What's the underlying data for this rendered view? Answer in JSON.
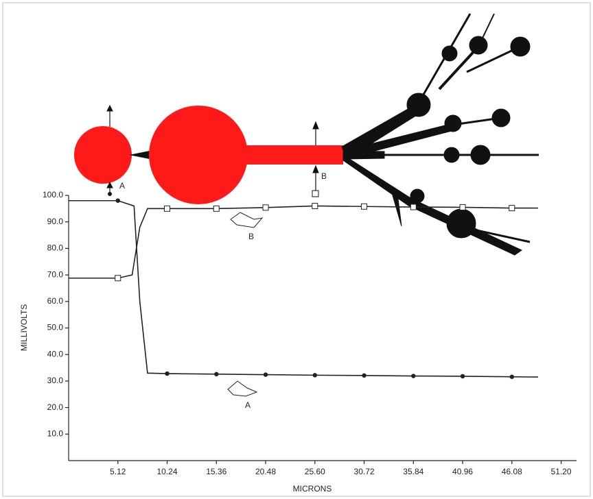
{
  "chart_data": {
    "type": "line",
    "x_label": "MICRONS",
    "y_label": "MILLIVOLTS",
    "xlim": [
      0,
      52.8
    ],
    "ylim": [
      0,
      100
    ],
    "xticks": [
      5.12,
      10.24,
      15.36,
      20.48,
      {
        "value": 25.6,
        "label": "25.60"
      },
      30.72,
      35.84,
      40.96,
      46.08,
      {
        "value": 51.2,
        "label": "51.20"
      }
    ],
    "yticks": [
      {
        "value": 10,
        "label": "10.0"
      },
      {
        "value": 20,
        "label": "20.0"
      },
      {
        "value": 30,
        "label": "30.0"
      },
      {
        "value": 40,
        "label": "40.0"
      },
      {
        "value": 50,
        "label": "50.0"
      },
      {
        "value": 60,
        "label": "60.0"
      },
      {
        "value": 70,
        "label": "70.0"
      },
      {
        "value": 80,
        "label": "80.0"
      },
      {
        "value": 90,
        "label": "90.0"
      },
      {
        "value": 100,
        "label": "100.0"
      }
    ],
    "series": [
      {
        "name": "A",
        "color": "#222222",
        "marker": "circle",
        "x": [
          0,
          5.12,
          6.8,
          7.4,
          8.2,
          10.24,
          15.36,
          20.48,
          25.6,
          30.72,
          35.84,
          40.96,
          46.08,
          48.8
        ],
        "values": [
          98,
          98,
          96,
          60,
          33,
          32.8,
          32.6,
          32.4,
          32.2,
          32.1,
          31.9,
          31.8,
          31.6,
          31.5
        ]
      },
      {
        "name": "B",
        "color": "#222222",
        "marker": "square",
        "x": [
          0,
          5.12,
          6.6,
          7.4,
          8.2,
          10.24,
          15.36,
          20.48,
          25.6,
          30.72,
          35.84,
          40.96,
          46.08,
          48.8
        ],
        "values": [
          68.8,
          68.8,
          70,
          88,
          95,
          95,
          95,
          95.4,
          96,
          95.8,
          95.6,
          95.5,
          95.2,
          95.2
        ]
      }
    ],
    "annotations": [
      "A",
      "A",
      "B",
      "B"
    ]
  }
}
